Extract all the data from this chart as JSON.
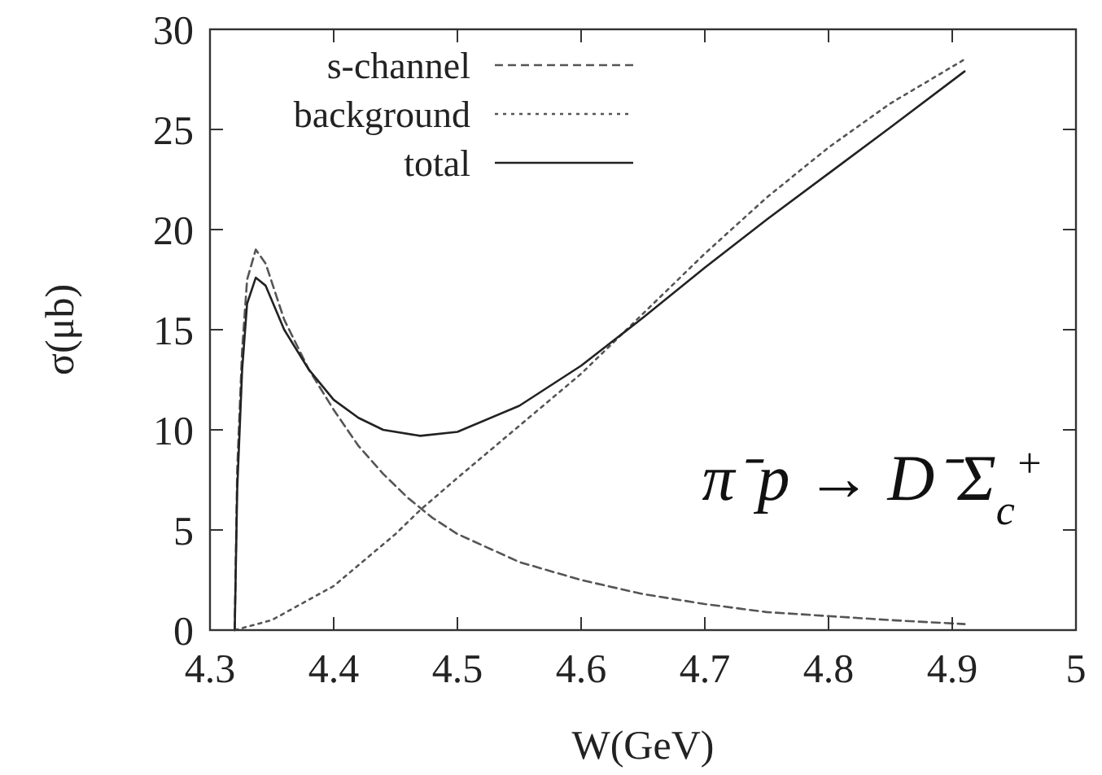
{
  "chart_data": {
    "type": "line",
    "xlabel": "W(GeV)",
    "ylabel": "σ(μb)",
    "xlim": [
      4.3,
      5
    ],
    "ylim": [
      0,
      30
    ],
    "xticks": [
      4.3,
      4.4,
      4.5,
      4.6,
      4.7,
      4.8,
      4.9,
      5
    ],
    "yticks": [
      0,
      5,
      10,
      15,
      20,
      25,
      30
    ],
    "grid": false,
    "legend": "top left",
    "marker": "none",
    "annotations": [
      "π⁻p → D⁻Σ$_{c}$$^{+}$"
    ],
    "series": [
      {
        "name": "s-channel",
        "color": "#555555",
        "line_style": "dashed",
        "x": [
          4.32,
          4.322,
          4.326,
          4.33,
          4.337,
          4.345,
          4.36,
          4.38,
          4.4,
          4.42,
          4.44,
          4.46,
          4.48,
          4.5,
          4.55,
          4.6,
          4.65,
          4.7,
          4.75,
          4.8,
          4.85,
          4.91
        ],
        "values": [
          0,
          8,
          14,
          17.5,
          19,
          18.3,
          15.5,
          13,
          11,
          9.2,
          7.8,
          6.6,
          5.6,
          4.8,
          3.4,
          2.5,
          1.8,
          1.3,
          0.9,
          0.7,
          0.5,
          0.3
        ]
      },
      {
        "name": "background",
        "color": "#555555",
        "line_style": "dotted",
        "x": [
          4.32,
          4.35,
          4.4,
          4.45,
          4.47,
          4.5,
          4.55,
          4.6,
          4.65,
          4.7,
          4.75,
          4.8,
          4.85,
          4.91
        ],
        "values": [
          0,
          0.5,
          2.2,
          4.8,
          6,
          7.6,
          10.2,
          12.8,
          15.8,
          18.8,
          21.6,
          24.1,
          26.3,
          28.5
        ]
      },
      {
        "name": "total",
        "color": "#222222",
        "line_style": "solid",
        "x": [
          4.32,
          4.322,
          4.326,
          4.33,
          4.337,
          4.345,
          4.36,
          4.38,
          4.4,
          4.42,
          4.44,
          4.47,
          4.5,
          4.55,
          4.6,
          4.65,
          4.7,
          4.75,
          4.8,
          4.85,
          4.91
        ],
        "values": [
          0,
          7,
          13,
          16.3,
          17.6,
          17.2,
          15,
          13,
          11.5,
          10.6,
          10,
          9.7,
          9.9,
          11.2,
          13.2,
          15.6,
          18.1,
          20.5,
          22.8,
          25.1,
          27.9
        ]
      }
    ]
  }
}
